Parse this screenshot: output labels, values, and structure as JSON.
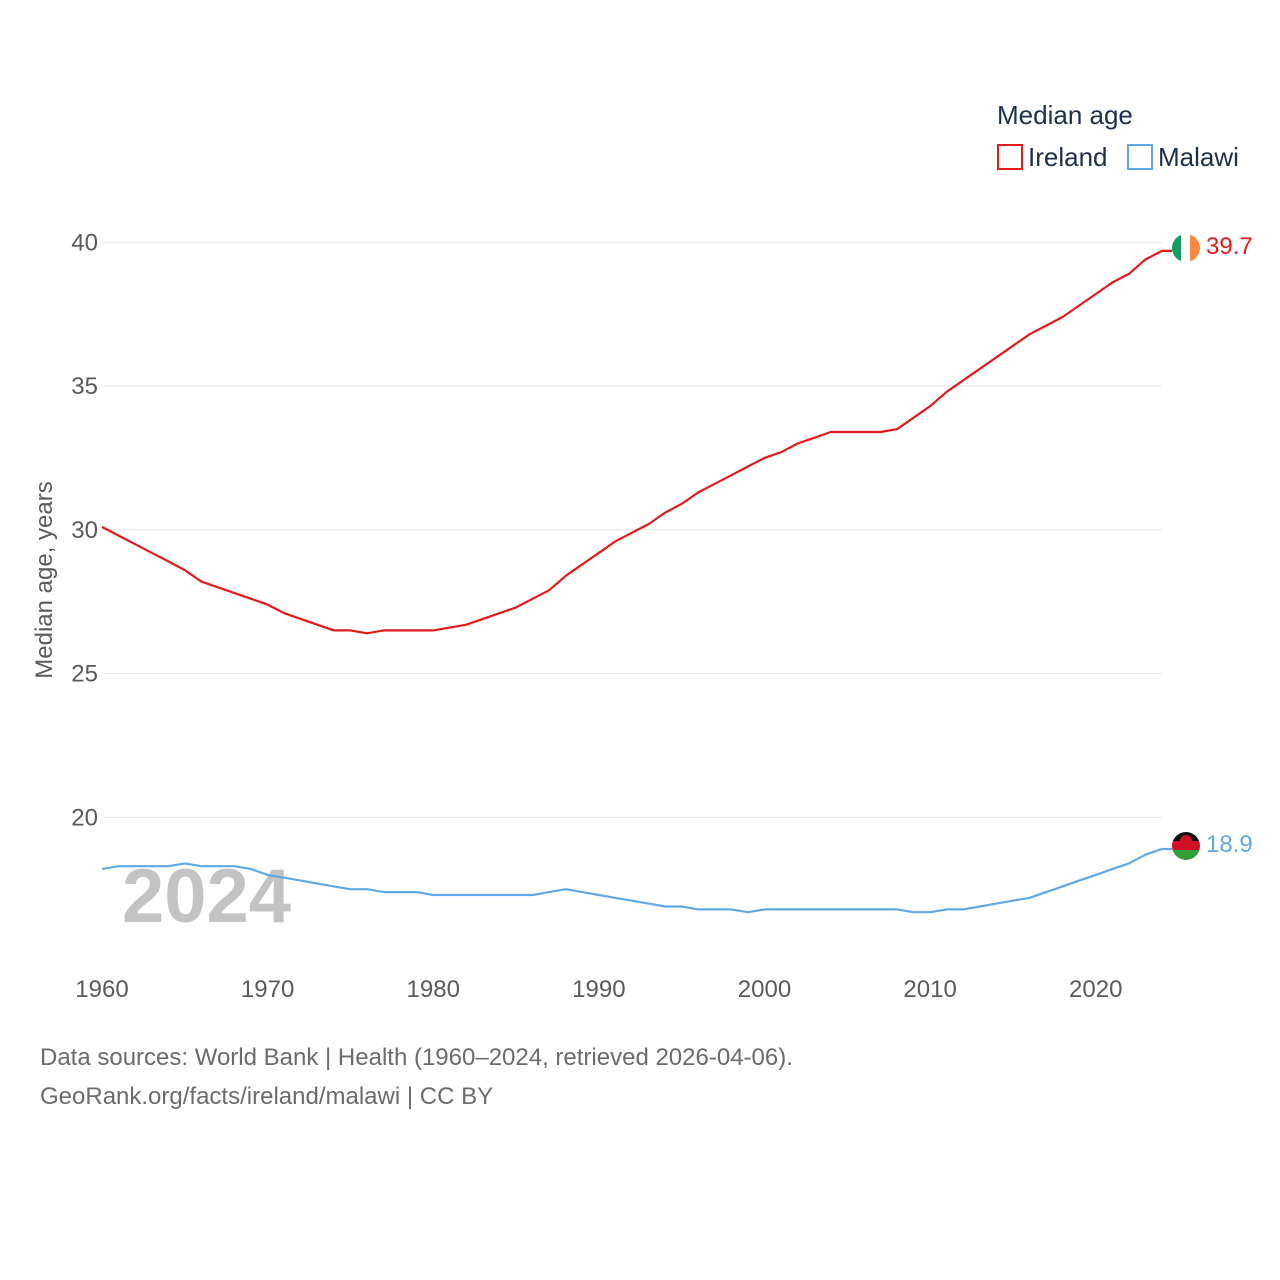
{
  "chart_data": {
    "type": "line",
    "title": "",
    "legend_title": "Median age",
    "ylabel": "Median age, years",
    "xlabel": "",
    "xlim": [
      1960,
      2024
    ],
    "ylim": [
      16.5,
      40.6
    ],
    "x_ticks": [
      1960,
      1970,
      1980,
      1990,
      2000,
      2010,
      2020
    ],
    "y_ticks": [
      20,
      25,
      30,
      35,
      40
    ],
    "year_label": "2024",
    "x": [
      1960,
      1961,
      1962,
      1963,
      1964,
      1965,
      1966,
      1967,
      1968,
      1969,
      1970,
      1971,
      1972,
      1973,
      1974,
      1975,
      1976,
      1977,
      1978,
      1979,
      1980,
      1981,
      1982,
      1983,
      1984,
      1985,
      1986,
      1987,
      1988,
      1989,
      1990,
      1991,
      1992,
      1993,
      1994,
      1995,
      1996,
      1997,
      1998,
      1999,
      2000,
      2001,
      2002,
      2003,
      2004,
      2005,
      2006,
      2007,
      2008,
      2009,
      2010,
      2011,
      2012,
      2013,
      2014,
      2015,
      2016,
      2017,
      2018,
      2019,
      2020,
      2021,
      2022,
      2023,
      2024
    ],
    "series": [
      {
        "name": "Ireland",
        "color": "#e31a1c",
        "end_label": "39.7",
        "values": [
          30.1,
          29.8,
          29.5,
          29.2,
          28.9,
          28.6,
          28.2,
          28.0,
          27.8,
          27.6,
          27.4,
          27.1,
          26.9,
          26.7,
          26.5,
          26.5,
          26.4,
          26.5,
          26.5,
          26.5,
          26.5,
          26.6,
          26.7,
          26.9,
          27.1,
          27.3,
          27.6,
          27.9,
          28.4,
          28.8,
          29.2,
          29.6,
          29.9,
          30.2,
          30.6,
          30.9,
          31.3,
          31.6,
          31.9,
          32.2,
          32.5,
          32.7,
          33.0,
          33.2,
          33.4,
          33.4,
          33.4,
          33.4,
          33.5,
          33.9,
          34.3,
          34.8,
          35.2,
          35.6,
          36.0,
          36.4,
          36.8,
          37.1,
          37.4,
          37.8,
          38.2,
          38.6,
          38.9,
          39.4,
          39.7
        ]
      },
      {
        "name": "Malawi",
        "color": "#5fa8e6",
        "end_label": "18.9",
        "values": [
          18.2,
          18.3,
          18.3,
          18.3,
          18.3,
          18.4,
          18.3,
          18.3,
          18.3,
          18.2,
          18.0,
          17.9,
          17.8,
          17.7,
          17.6,
          17.5,
          17.5,
          17.4,
          17.4,
          17.4,
          17.3,
          17.3,
          17.3,
          17.3,
          17.3,
          17.3,
          17.3,
          17.4,
          17.5,
          17.4,
          17.3,
          17.2,
          17.1,
          17.0,
          16.9,
          16.9,
          16.8,
          16.8,
          16.8,
          16.7,
          16.8,
          16.8,
          16.8,
          16.8,
          16.8,
          16.8,
          16.8,
          16.8,
          16.8,
          16.7,
          16.7,
          16.8,
          16.8,
          16.9,
          17.0,
          17.1,
          17.2,
          17.4,
          17.6,
          17.8,
          18.0,
          18.2,
          18.4,
          18.7,
          18.9
        ]
      }
    ]
  },
  "footer": {
    "line1": "Data sources: World Bank | Health (1960–2024, retrieved 2026-04-06).",
    "line2": "GeoRank.org/facts/ireland/malawi | CC BY"
  }
}
